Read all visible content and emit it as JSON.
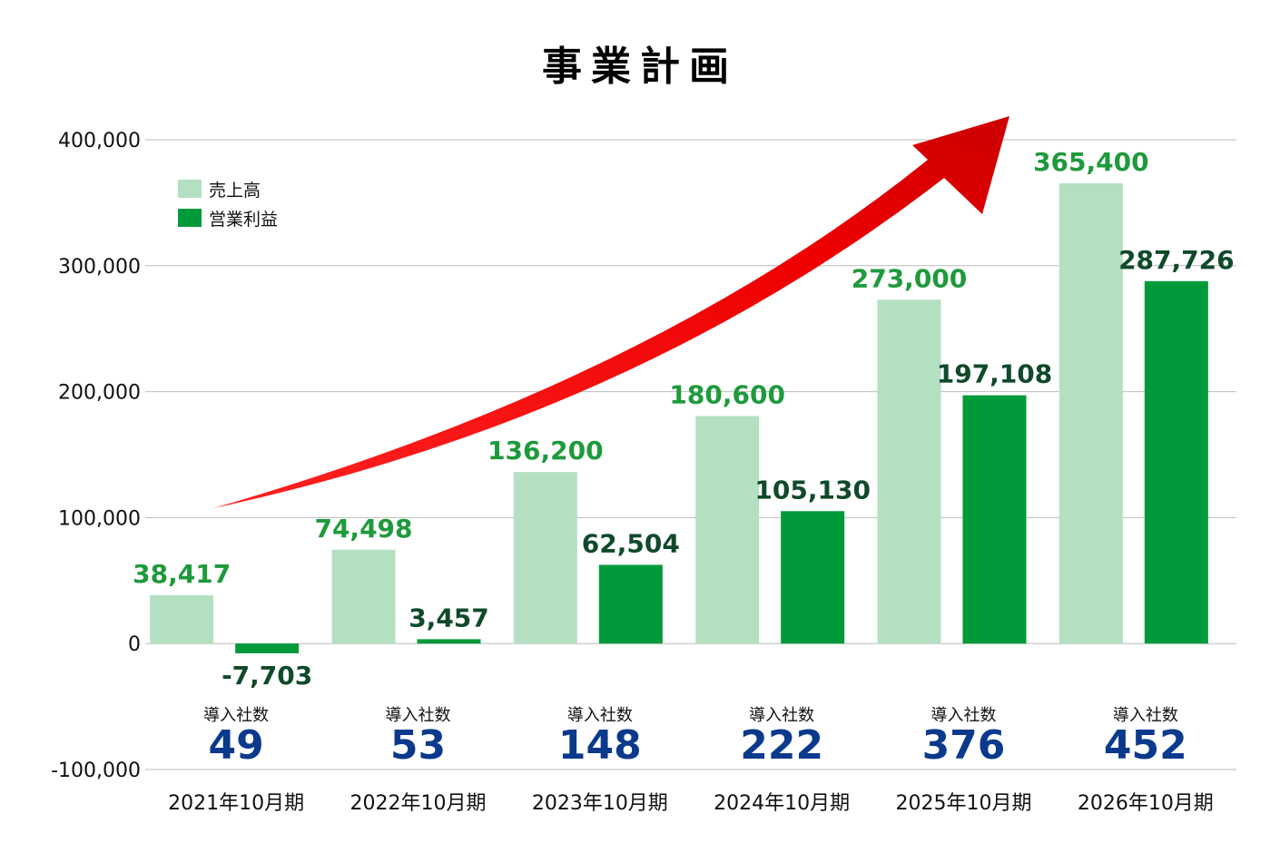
{
  "chart_data": {
    "type": "bar",
    "title": "事業計画",
    "categories": [
      "2021年10月期",
      "2022年10月期",
      "2023年10月期",
      "2024年10月期",
      "2025年10月期",
      "2026年10月期"
    ],
    "series": [
      {
        "name": "売上高",
        "values": [
          38417,
          74498,
          136200,
          180600,
          273000,
          365400
        ],
        "color": "#b4e0c2"
      },
      {
        "name": "営業利益",
        "values": [
          -7703,
          3457,
          62504,
          105130,
          197108,
          287726
        ],
        "color": "#009a3a"
      }
    ],
    "data_labels": {
      "sales": [
        "38,417",
        "74,498",
        "136,200",
        "180,600",
        "273,000",
        "365,400"
      ],
      "operating_profit": [
        "-7,703",
        "3,457",
        "62,504",
        "105,130",
        "197,108",
        "287,726"
      ]
    },
    "y_ticks": [
      "400,000",
      "300,000",
      "200,000",
      "100,000",
      "0",
      "-100,000"
    ],
    "ylim": [
      -100000,
      400000
    ],
    "grid": true,
    "legend_position": "top-left",
    "customers_label": "導入社数",
    "customers": [
      "49",
      "53",
      "148",
      "222",
      "376",
      "452"
    ],
    "colors": {
      "sales_label": "#1e9a3c",
      "op_label": "#0f4a2a",
      "customer_number": "#0b3a8c",
      "arrow": "#ee0000",
      "grid": "#bbbbbb"
    },
    "decorations": {
      "arrow": "red-upward-trend-arrow"
    }
  }
}
